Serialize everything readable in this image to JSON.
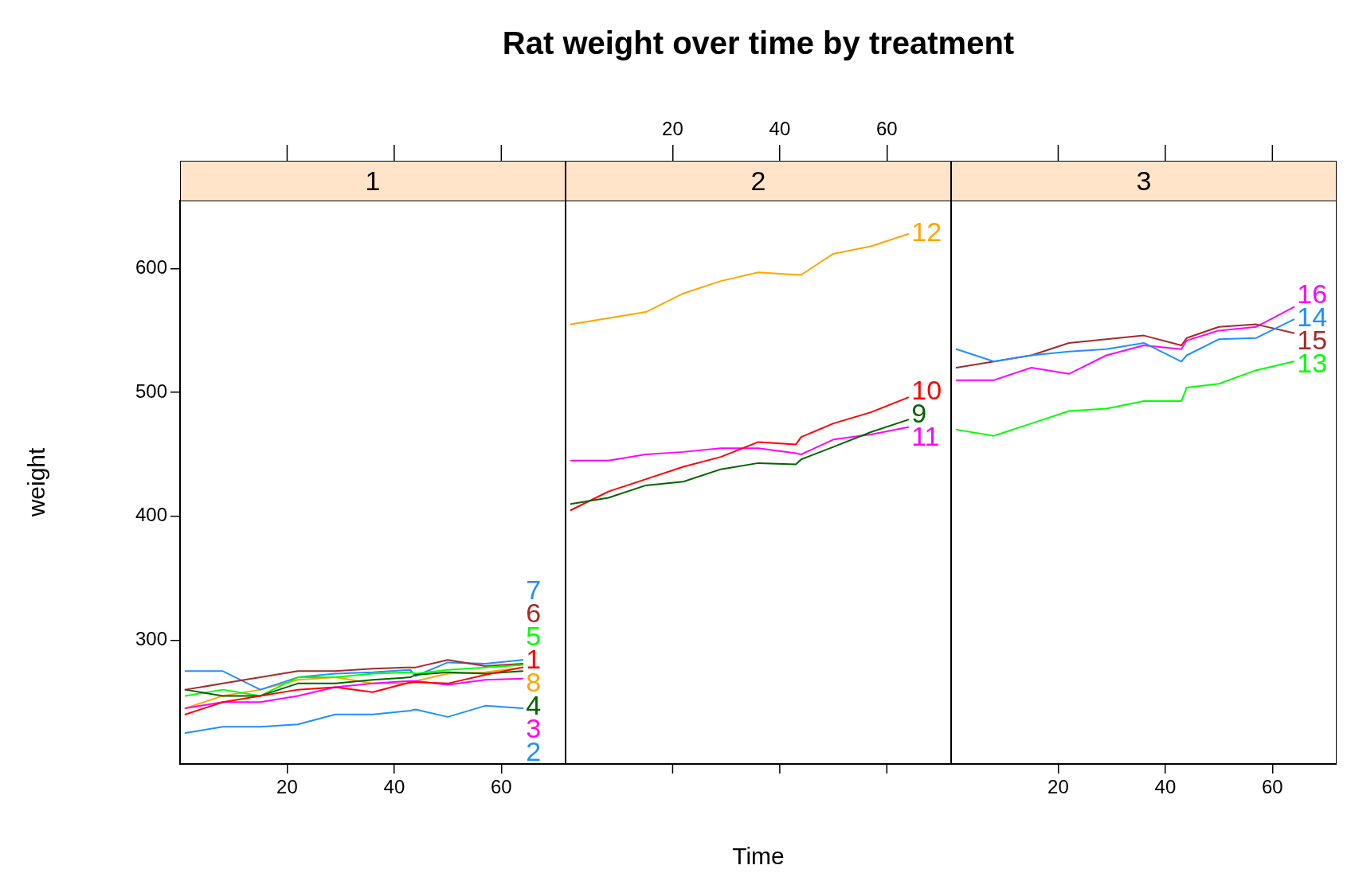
{
  "chart_data": [
    {
      "type": "line",
      "subtitle": "1",
      "ylabel": "weight",
      "xlim": [
        0,
        72
      ],
      "xticks": [
        20,
        40,
        60
      ],
      "ylim": [
        200,
        655
      ],
      "yticks": [
        300,
        400,
        500,
        600
      ],
      "x": [
        1,
        8,
        15,
        22,
        29,
        36,
        43,
        44,
        50,
        57,
        64
      ],
      "series": [
        {
          "name": "1",
          "color": "#ff0000",
          "values": [
            240,
            250,
            255,
            260,
            262,
            258,
            266,
            266,
            265,
            272,
            278
          ]
        },
        {
          "name": "2",
          "color": "#1e90ff",
          "values": [
            225,
            230,
            230,
            232,
            240,
            240,
            243,
            244,
            238,
            247,
            245
          ]
        },
        {
          "name": "3",
          "color": "#ff00ff",
          "values": [
            245,
            250,
            250,
            255,
            262,
            265,
            267,
            267,
            264,
            268,
            269
          ]
        },
        {
          "name": "4",
          "color": "#006400",
          "values": [
            260,
            255,
            255,
            265,
            265,
            268,
            270,
            272,
            274,
            273,
            275
          ]
        },
        {
          "name": "5",
          "color": "#00ff00",
          "values": [
            255,
            260,
            255,
            270,
            270,
            273,
            274,
            273,
            276,
            278,
            280
          ]
        },
        {
          "name": "6",
          "color": "#a52a2a",
          "values": [
            260,
            265,
            270,
            275,
            275,
            277,
            278,
            278,
            284,
            279,
            281
          ]
        },
        {
          "name": "7",
          "color": "#1e90ff",
          "values": [
            275,
            275,
            260,
            270,
            273,
            274,
            276,
            271,
            282,
            281,
            284
          ]
        },
        {
          "name": "8",
          "color": "#ffa500",
          "values": [
            245,
            255,
            260,
            268,
            270,
            265,
            265,
            267,
            273,
            274,
            278
          ]
        }
      ]
    },
    {
      "type": "line",
      "title": "Rat weight over time by treatment",
      "subtitle": "2",
      "xlabel": "Time",
      "xlim": [
        0,
        72
      ],
      "xticks": [
        20,
        40,
        60
      ],
      "ylim": [
        200,
        655
      ],
      "tick_labels": "x",
      "x": [
        1,
        8,
        15,
        22,
        29,
        36,
        43,
        44,
        50,
        57,
        64
      ],
      "series": [
        {
          "name": "9",
          "color": "#006400",
          "values": [
            410,
            415,
            425,
            428,
            438,
            443,
            442,
            446,
            456,
            468,
            478
          ]
        },
        {
          "name": "10",
          "color": "#ff0000",
          "values": [
            405,
            420,
            430,
            440,
            448,
            460,
            458,
            464,
            475,
            484,
            496
          ]
        },
        {
          "name": "11",
          "color": "#ff00ff",
          "values": [
            445,
            445,
            450,
            452,
            455,
            455,
            451,
            450,
            462,
            466,
            472
          ]
        },
        {
          "name": "12",
          "color": "#ffa500",
          "values": [
            555,
            560,
            565,
            580,
            590,
            597,
            595,
            595,
            612,
            618,
            628
          ]
        }
      ]
    },
    {
      "type": "line",
      "subtitle": "3",
      "xlim": [
        0,
        72
      ],
      "xticks": [
        20,
        40,
        60
      ],
      "ylim": [
        200,
        655
      ],
      "tick_labels": "x",
      "x": [
        1,
        8,
        15,
        22,
        29,
        36,
        43,
        44,
        50,
        57,
        64
      ],
      "series": [
        {
          "name": "13",
          "color": "#00ff00",
          "values": [
            470,
            465,
            475,
            485,
            487,
            493,
            493,
            504,
            507,
            518,
            525
          ]
        },
        {
          "name": "14",
          "color": "#1e90ff",
          "values": [
            535,
            525,
            530,
            533,
            535,
            540,
            525,
            530,
            543,
            544,
            559
          ]
        },
        {
          "name": "15",
          "color": "#a52a2a",
          "values": [
            520,
            525,
            530,
            540,
            543,
            546,
            538,
            544,
            553,
            555,
            548
          ]
        },
        {
          "name": "16",
          "color": "#ff00ff",
          "values": [
            510,
            510,
            520,
            515,
            530,
            538,
            535,
            542,
            550,
            553,
            569
          ]
        }
      ]
    }
  ]
}
